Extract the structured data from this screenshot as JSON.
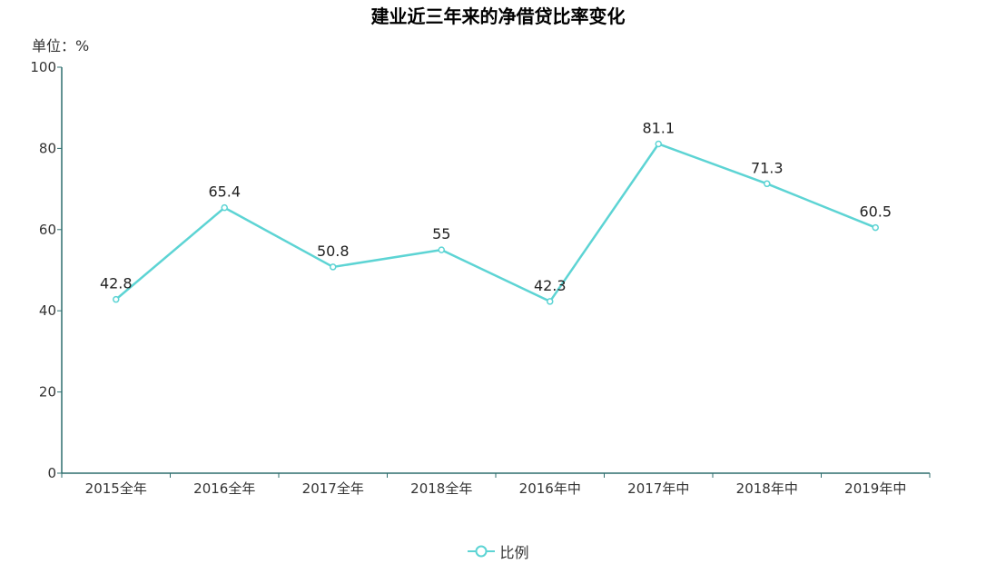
{
  "title": "建业近三年来的净借贷比率变化",
  "unit_label": "单位：%",
  "colors": {
    "series": "#5dd4d4",
    "axis": "#2e6e6e"
  },
  "chart_data": {
    "type": "line",
    "title": "建业近三年来的净借贷比率变化",
    "ylabel": "单位：%",
    "categories": [
      "2015全年",
      "2016全年",
      "2017全年",
      "2018全年",
      "2016年中",
      "2017年中",
      "2018年中",
      "2019年中"
    ],
    "series": [
      {
        "name": "比例",
        "values": [
          42.8,
          65.4,
          50.8,
          55,
          42.3,
          81.1,
          71.3,
          60.5
        ],
        "labels": [
          "42.8",
          "65.4",
          "50.8",
          "55",
          "42.3",
          "81.1",
          "71.3",
          "60.5"
        ]
      }
    ],
    "ylim": [
      0,
      100
    ],
    "yticks": [
      0,
      20,
      40,
      60,
      80,
      100
    ],
    "grid": false,
    "legend_position": "bottom"
  },
  "legend": {
    "label": "比例"
  }
}
